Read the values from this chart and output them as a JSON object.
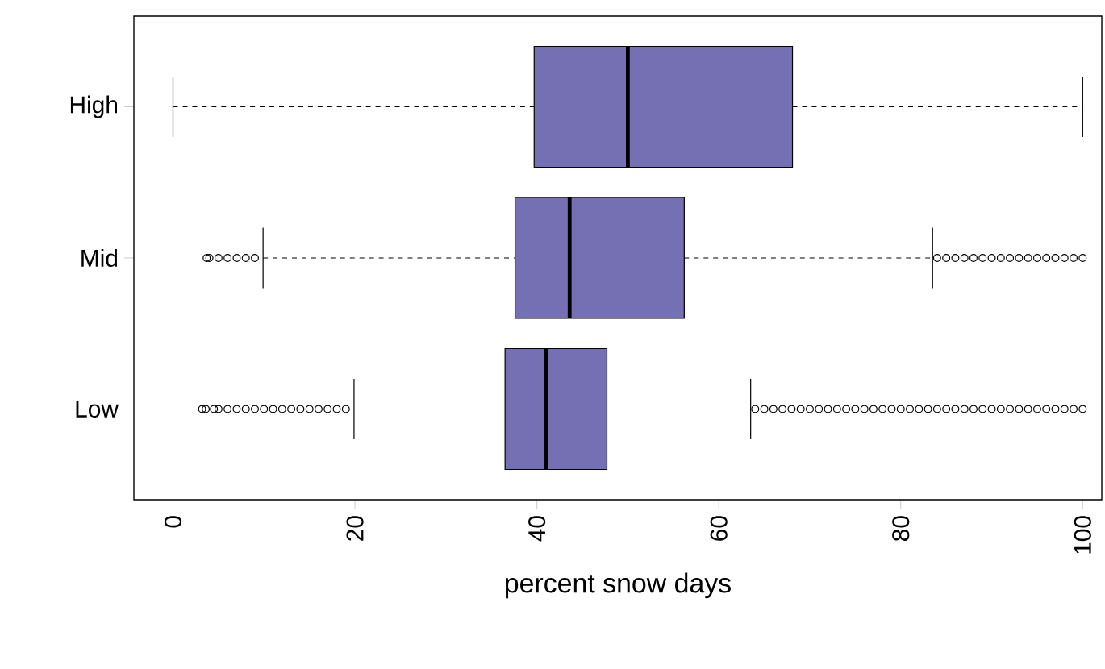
{
  "chart_data": {
    "type": "box",
    "orientation": "horizontal",
    "xlabel": "percent snow days",
    "color": "#7570b3",
    "categories": [
      "High",
      "Mid",
      "Low"
    ],
    "boxes": [
      {
        "low": 0,
        "q1": 39.7,
        "median": 50,
        "q3": 68.1,
        "high": 100
      },
      {
        "low": 9.9,
        "q1": 37.6,
        "median": 43.6,
        "q3": 56.2,
        "high": 83.5,
        "outliers": [
          3.7,
          4,
          5,
          6,
          7,
          8,
          9,
          84,
          85,
          86,
          87,
          88,
          89,
          90,
          91,
          92,
          93,
          94,
          95,
          96,
          97,
          98,
          99,
          100
        ]
      },
      {
        "low": 19.9,
        "q1": 36.5,
        "median": 41,
        "q3": 47.7,
        "high": 63.5,
        "outliers": [
          3.2,
          3.6,
          4.5,
          5,
          6,
          7,
          8,
          9,
          10,
          11,
          12,
          13,
          14,
          15,
          16,
          17,
          18,
          19,
          64,
          65,
          66,
          67,
          68,
          69,
          70,
          71,
          72,
          73,
          74,
          75,
          76,
          77,
          78,
          79,
          80,
          81,
          82,
          83,
          84,
          85,
          86,
          87,
          88,
          89,
          90,
          91,
          92,
          93,
          94,
          95,
          96,
          97,
          98,
          99,
          100
        ]
      }
    ],
    "xlim": [
      -4.3,
      102.1
    ],
    "xticks": [
      0,
      20,
      40,
      60,
      80,
      100
    ],
    "marker": "circle",
    "grid": false
  }
}
